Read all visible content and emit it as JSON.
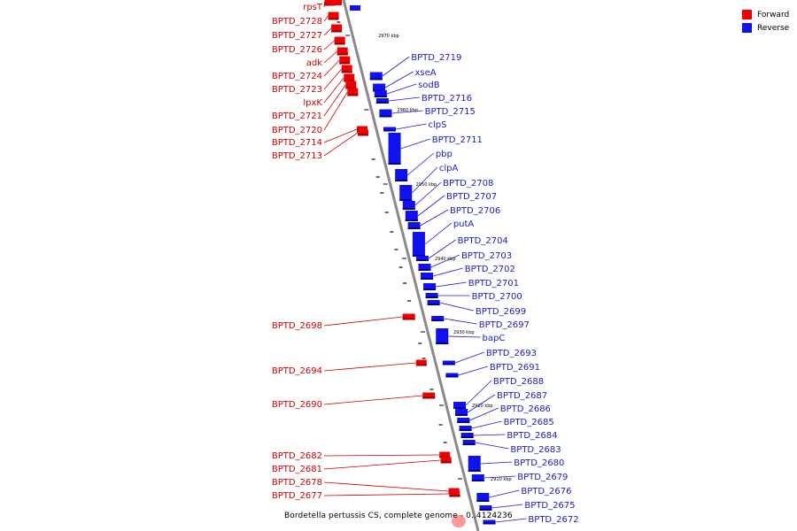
{
  "legend": {
    "forward_label": "Forward",
    "reverse_label": "Reverse",
    "forward_color": "#ee0000",
    "reverse_color": "#1111ee"
  },
  "caption": "Bordetella pertussis CS, complete genome - 0..4124236",
  "kbp_ticks": [
    "2970 kbp",
    "2960 kbp",
    "2950 kbp",
    "2940 kbp",
    "2930 kbp",
    "2920 kbp",
    "2910 kbp"
  ],
  "forward_genes": [
    "rpsT",
    "BPTD_2728",
    "BPTD_2727",
    "BPTD_2726",
    "adk",
    "BPTD_2724",
    "BPTD_2723",
    "lpxK",
    "BPTD_2721",
    "BPTD_2720",
    "BPTD_2714",
    "BPTD_2713",
    "BPTD_2698",
    "BPTD_2694",
    "BPTD_2690",
    "BPTD_2682",
    "BPTD_2681",
    "BPTD_2678",
    "BPTD_2677"
  ],
  "reverse_genes": [
    "BPTD_2719",
    "xseA",
    "sodB",
    "BPTD_2716",
    "BPTD_2715",
    "clpS",
    "BPTD_2711",
    "pbp",
    "clpA",
    "BPTD_2708",
    "BPTD_2707",
    "BPTD_2706",
    "putA",
    "BPTD_2704",
    "BPTD_2703",
    "BPTD_2702",
    "BPTD_2701",
    "BPTD_2700",
    "BPTD_2699",
    "BPTD_2697",
    "bapC",
    "BPTD_2693",
    "BPTD_2691",
    "BPTD_2688",
    "BPTD_2687",
    "BPTD_2686",
    "BPTD_2685",
    "BPTD_2684",
    "BPTD_2683",
    "BPTD_2680",
    "BPTD_2679",
    "BPTD_2676",
    "BPTD_2675",
    "BPTD_2672"
  ]
}
